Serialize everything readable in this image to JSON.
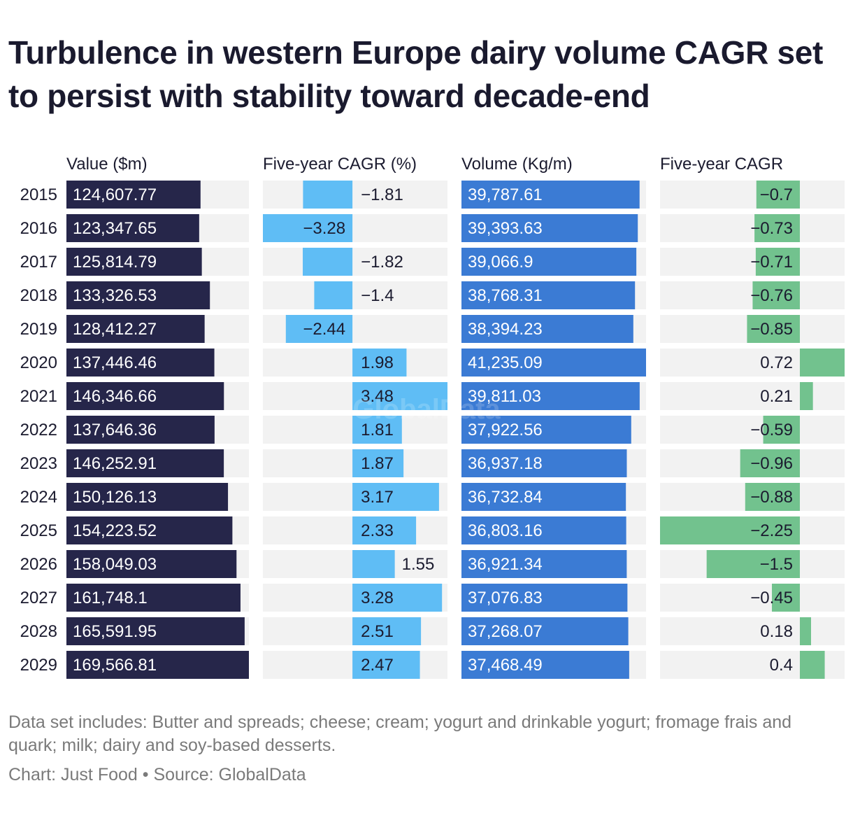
{
  "title": "Turbulence in western Europe dairy volume CAGR set to persist with stability toward decade-end",
  "notes": "Data set includes: Butter and spreads; cheese; cream; yogurt and drinkable yogurt; fromage frais and quark; milk; dairy and soy-based desserts.",
  "credit": "Chart: Just Food • Source: GlobalData",
  "watermark": "GlobalData",
  "colors": {
    "value_bar": "#26264a",
    "value_cagr_bar": "#5fbdf5",
    "volume_bar": "#3b7bd4",
    "volume_cagr_bar": "#72c28e",
    "track": "#f2f2f2"
  },
  "chart_data": {
    "type": "table",
    "categories": [
      "2015",
      "2016",
      "2017",
      "2018",
      "2019",
      "2020",
      "2021",
      "2022",
      "2023",
      "2024",
      "2025",
      "2026",
      "2027",
      "2028",
      "2029"
    ],
    "columns": [
      {
        "header": "Value ($m)",
        "values": [
          124607.77,
          123347.65,
          125814.79,
          133326.53,
          128412.27,
          137446.46,
          146346.66,
          137646.36,
          146252.91,
          150126.13,
          154223.52,
          158049.03,
          161748.1,
          165591.95,
          169566.81
        ],
        "labels": [
          "124,607.77",
          "123,347.65",
          "125,814.79",
          "133,326.53",
          "128,412.27",
          "137,446.46",
          "146,346.66",
          "137,646.36",
          "146,252.91",
          "150,126.13",
          "154,223.52",
          "158,049.03",
          "161,748.1",
          "165,591.95",
          "169,566.81"
        ],
        "color": "#26264a",
        "kind": "bar"
      },
      {
        "header": "Five-year CAGR (%)",
        "values": [
          -1.81,
          -3.28,
          -1.82,
          -1.4,
          -2.44,
          1.98,
          3.48,
          1.81,
          1.87,
          3.17,
          2.33,
          1.55,
          3.28,
          2.51,
          2.47
        ],
        "labels": [
          "−1.81",
          "−3.28",
          "−1.82",
          "−1.4",
          "−2.44",
          "1.98",
          "3.48",
          "1.81",
          "1.87",
          "3.17",
          "2.33",
          "1.55",
          "3.28",
          "2.51",
          "2.47"
        ],
        "color": "#5fbdf5",
        "kind": "diverging"
      },
      {
        "header": "Volume (Kg/m)",
        "values": [
          39787.61,
          39393.63,
          39066.9,
          38768.31,
          38394.23,
          41235.09,
          39811.03,
          37922.56,
          36937.18,
          36732.84,
          36803.16,
          36921.34,
          37076.83,
          37268.07,
          37468.49
        ],
        "labels": [
          "39,787.61",
          "39,393.63",
          "39,066.9",
          "38,768.31",
          "38,394.23",
          "41,235.09",
          "39,811.03",
          "37,922.56",
          "36,937.18",
          "36,732.84",
          "36,803.16",
          "36,921.34",
          "37,076.83",
          "37,268.07",
          "37,468.49"
        ],
        "color": "#3b7bd4",
        "kind": "bar"
      },
      {
        "header": "Five-year CAGR",
        "values": [
          -0.7,
          -0.73,
          -0.71,
          -0.76,
          -0.85,
          0.72,
          0.21,
          -0.59,
          -0.96,
          -0.88,
          -2.25,
          -1.5,
          -0.45,
          0.18,
          0.4
        ],
        "labels": [
          "−0.7",
          "−0.73",
          "−0.71",
          "−0.76",
          "−0.85",
          "0.72",
          "0.21",
          "−0.59",
          "−0.96",
          "−0.88",
          "−2.25",
          "−1.5",
          "−0.45",
          "0.18",
          "0.4"
        ],
        "color": "#72c28e",
        "kind": "diverging"
      }
    ]
  }
}
